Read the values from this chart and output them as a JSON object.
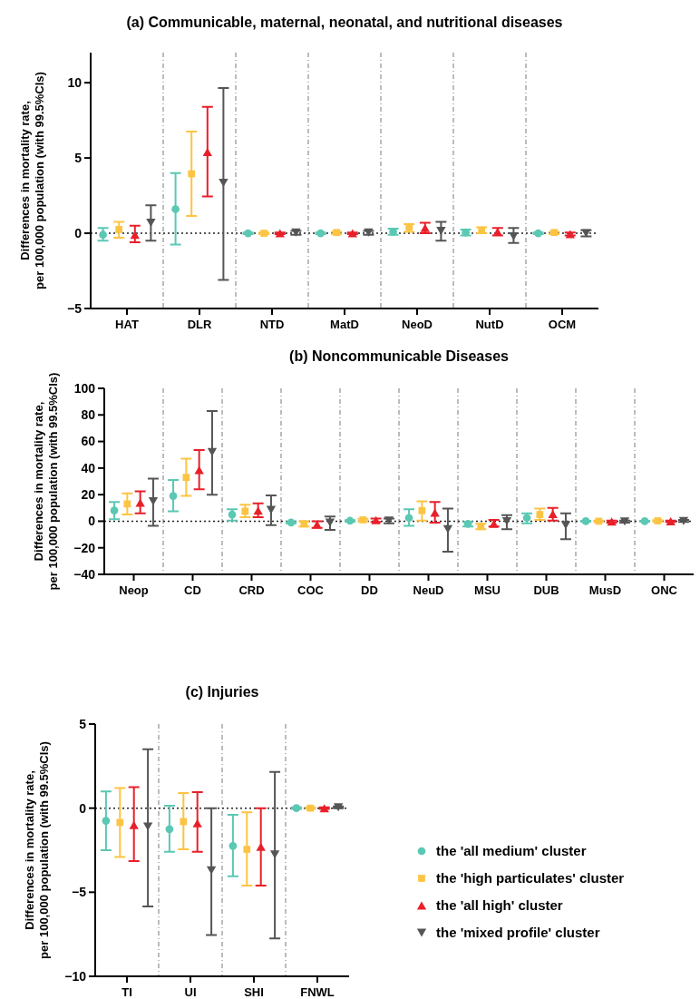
{
  "chart_data": [
    {
      "type": "scatter",
      "title": "(a) Communicable, maternal, neonatal, and nutritional diseases",
      "ylabel": "Differences in mortality rate,\nper 100,000 population (with 99.5%CIs)",
      "categories": [
        "HAT",
        "DLR",
        "NTD",
        "MatD",
        "NeoD",
        "NutD",
        "OCM"
      ],
      "ylim": [
        -5,
        12
      ],
      "yticks": [
        -5,
        0,
        5,
        10
      ],
      "grid": false,
      "legend": false,
      "ref_lines": [
        {
          "axis": "y",
          "value": 0,
          "line_style": "dotted",
          "color": "#222222"
        }
      ],
      "series": [
        {
          "color": "#5bc8b4",
          "marker": "circle",
          "values": [
            -0.1,
            1.6,
            0,
            0,
            0.1,
            0.05,
            0
          ],
          "errors": [
            [
              -0.5,
              0.35
            ],
            [
              -0.75,
              4.0
            ],
            [
              -0.05,
              0.05
            ],
            [
              -0.05,
              0.05
            ],
            [
              -0.1,
              0.3
            ],
            [
              -0.15,
              0.25
            ],
            [
              -0.05,
              0.05
            ]
          ]
        },
        {
          "color": "#fcc444",
          "marker": "square",
          "values": [
            0.25,
            3.95,
            0,
            0.05,
            0.4,
            0.2,
            0.05
          ],
          "errors": [
            [
              -0.3,
              0.75
            ],
            [
              1.15,
              6.75
            ],
            [
              -0.05,
              0.05
            ],
            [
              -0.05,
              0.1
            ],
            [
              0.1,
              0.6
            ],
            [
              0,
              0.4
            ],
            [
              -0.05,
              0.1
            ]
          ]
        },
        {
          "color": "#e8202a",
          "marker": "triangle",
          "values": [
            -0.1,
            5.4,
            0,
            0,
            0.35,
            0.1,
            -0.05
          ],
          "errors": [
            [
              -0.6,
              0.5
            ],
            [
              2.45,
              8.4
            ],
            [
              -0.05,
              0.05
            ],
            [
              -0.05,
              0.05
            ],
            [
              0,
              0.7
            ],
            [
              -0.15,
              0.35
            ],
            [
              -0.15,
              0.05
            ]
          ]
        },
        {
          "color": "#555555",
          "marker": "triangle-down",
          "values": [
            0.7,
            3.35,
            0.05,
            0.05,
            0.15,
            -0.2,
            0
          ],
          "errors": [
            [
              -0.5,
              1.85
            ],
            [
              -3.1,
              9.65
            ],
            [
              -0.1,
              0.15
            ],
            [
              -0.1,
              0.15
            ],
            [
              -0.5,
              0.75
            ],
            [
              -0.65,
              0.35
            ],
            [
              -0.2,
              0.2
            ]
          ]
        }
      ]
    },
    {
      "type": "scatter",
      "title": "(b) Noncommunicable Diseases",
      "ylabel": "Differences in mortality rate,\nper 100,000 population (with 99.5%CIs)",
      "categories": [
        "Neop",
        "CD",
        "CRD",
        "COC",
        "DD",
        "NeuD",
        "MSU",
        "DUB",
        "MusD",
        "ONC"
      ],
      "ylim": [
        -40,
        100
      ],
      "yticks": [
        -40,
        -20,
        0,
        20,
        40,
        60,
        80,
        100
      ],
      "grid": false,
      "legend": false,
      "ref_lines": [
        {
          "axis": "y",
          "value": 0,
          "line_style": "dotted",
          "color": "#222222"
        }
      ],
      "series": [
        {
          "color": "#5bc8b4",
          "marker": "circle",
          "values": [
            8,
            19,
            5,
            -1,
            0.3,
            2.5,
            -2,
            2.5,
            0,
            0
          ],
          "errors": [
            [
              1.5,
              14.5
            ],
            [
              7.5,
              31
            ],
            [
              0.5,
              9
            ],
            [
              -1.5,
              -0.5
            ],
            [
              -0.3,
              0.8
            ],
            [
              -3.5,
              9
            ],
            [
              -4,
              -0.5
            ],
            [
              -1.5,
              6
            ],
            [
              -0.3,
              0.3
            ],
            [
              -0.3,
              0.3
            ]
          ]
        },
        {
          "color": "#fcc444",
          "marker": "square",
          "values": [
            13,
            33,
            7.5,
            -2,
            1,
            8,
            -4,
            5,
            0,
            0.3
          ],
          "errors": [
            [
              5,
              21
            ],
            [
              19,
              47
            ],
            [
              3,
              12.5
            ],
            [
              -4,
              0
            ],
            [
              0,
              1.8
            ],
            [
              0.5,
              15
            ],
            [
              -6,
              -2
            ],
            [
              1,
              9.5
            ],
            [
              -0.5,
              0.5
            ],
            [
              -0.3,
              0.8
            ]
          ]
        },
        {
          "color": "#e8202a",
          "marker": "triangle",
          "values": [
            14,
            38.5,
            8,
            -2.5,
            0.8,
            6.5,
            -2,
            5.5,
            -0.3,
            0
          ],
          "errors": [
            [
              6,
              22.5
            ],
            [
              24,
              53.5
            ],
            [
              3,
              13.5
            ],
            [
              -5,
              0
            ],
            [
              -0.5,
              2
            ],
            [
              -1,
              14.5
            ],
            [
              -4,
              1
            ],
            [
              0.5,
              10
            ],
            [
              -1,
              0.5
            ],
            [
              -0.5,
              0.5
            ]
          ]
        },
        {
          "color": "#555555",
          "marker": "triangle-down",
          "values": [
            15,
            52,
            8.5,
            -1,
            0.5,
            -6,
            0,
            -3,
            -0.3,
            0.2
          ],
          "errors": [
            [
              -3.5,
              32
            ],
            [
              20,
              83
            ],
            [
              -3,
              19.5
            ],
            [
              -6.5,
              3.5
            ],
            [
              -1.5,
              2
            ],
            [
              -23,
              9.5
            ],
            [
              -6,
              4.5
            ],
            [
              -13.5,
              6
            ],
            [
              -1,
              0.5
            ],
            [
              -0.5,
              1
            ]
          ]
        }
      ]
    },
    {
      "type": "scatter",
      "title": "(c) Injuries",
      "ylabel": "Differences in mortality rate,\nper 100,000 population (with 99.5%CIs)",
      "categories": [
        "TI",
        "UI",
        "SHI",
        "FNWL"
      ],
      "ylim": [
        -10,
        5
      ],
      "yticks": [
        -10,
        -5,
        0,
        5
      ],
      "grid": false,
      "legend": "right",
      "ref_lines": [
        {
          "axis": "y",
          "value": 0,
          "line_style": "dotted",
          "color": "#222222"
        }
      ],
      "series": [
        {
          "name": "the 'all medium' cluster",
          "color": "#5bc8b4",
          "marker": "circle",
          "values": [
            -0.75,
            -1.25,
            -2.25,
            0
          ],
          "errors": [
            [
              -2.5,
              1.0
            ],
            [
              -2.6,
              0.15
            ],
            [
              -4.05,
              -0.4
            ],
            [
              -0.05,
              0.05
            ]
          ]
        },
        {
          "name": "the 'high particulates' cluster",
          "color": "#fcc444",
          "marker": "square",
          "values": [
            -0.85,
            -0.8,
            -2.45,
            0
          ],
          "errors": [
            [
              -2.9,
              1.2
            ],
            [
              -2.45,
              0.9
            ],
            [
              -4.6,
              -0.25
            ],
            [
              -0.05,
              0.05
            ]
          ]
        },
        {
          "name": "the 'all high' cluster",
          "color": "#e8202a",
          "marker": "triangle",
          "values": [
            -1.0,
            -0.9,
            -2.3,
            0
          ],
          "errors": [
            [
              -3.15,
              1.25
            ],
            [
              -2.6,
              0.95
            ],
            [
              -4.6,
              0
            ],
            [
              -0.05,
              0.05
            ]
          ]
        },
        {
          "name": "the 'mixed profile' cluster",
          "color": "#555555",
          "marker": "triangle-down",
          "values": [
            -1.1,
            -3.7,
            -2.75,
            0.05
          ],
          "errors": [
            [
              -5.85,
              3.5
            ],
            [
              -7.55,
              0
            ],
            [
              -7.75,
              2.15
            ],
            [
              0,
              0.1
            ]
          ]
        }
      ]
    }
  ]
}
